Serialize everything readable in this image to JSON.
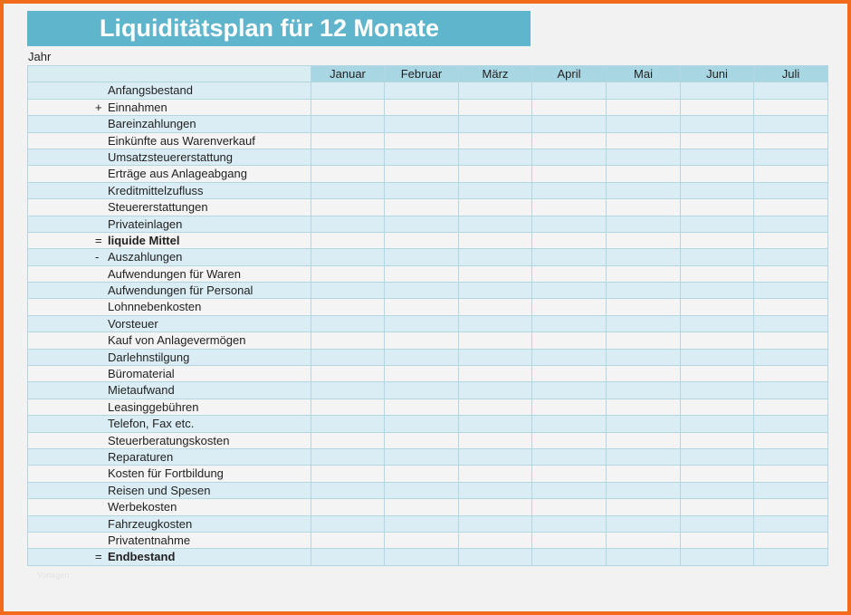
{
  "title": "Liquiditätsplan für 12 Monate",
  "year_label": "Jahr",
  "months": [
    "Januar",
    "Februar",
    "März",
    "April",
    "Mai",
    "Juni",
    "Juli"
  ],
  "rows": [
    {
      "prefix": "",
      "label": "Anfangsbestand",
      "bold": false
    },
    {
      "prefix": "+",
      "label": "Einnahmen",
      "bold": false
    },
    {
      "prefix": "",
      "label": "Bareinzahlungen",
      "bold": false
    },
    {
      "prefix": "",
      "label": "Einkünfte aus Warenverkauf",
      "bold": false
    },
    {
      "prefix": "",
      "label": "Umsatzsteuererstattung",
      "bold": false
    },
    {
      "prefix": "",
      "label": "Erträge aus Anlageabgang",
      "bold": false
    },
    {
      "prefix": "",
      "label": "Kreditmittelzufluss",
      "bold": false
    },
    {
      "prefix": "",
      "label": "Steuererstattungen",
      "bold": false
    },
    {
      "prefix": "",
      "label": "Privateinlagen",
      "bold": false
    },
    {
      "prefix": "=",
      "label": "liquide Mittel",
      "bold": true
    },
    {
      "prefix": "-",
      "label": "Auszahlungen",
      "bold": false
    },
    {
      "prefix": "",
      "label": "Aufwendungen für Waren",
      "bold": false
    },
    {
      "prefix": "",
      "label": "Aufwendungen für Personal",
      "bold": false
    },
    {
      "prefix": "",
      "label": "Lohnnebenkosten",
      "bold": false
    },
    {
      "prefix": "",
      "label": "Vorsteuer",
      "bold": false
    },
    {
      "prefix": "",
      "label": "Kauf von Anlagevermögen",
      "bold": false
    },
    {
      "prefix": "",
      "label": "Darlehnstilgung",
      "bold": false
    },
    {
      "prefix": "",
      "label": "Büromaterial",
      "bold": false
    },
    {
      "prefix": "",
      "label": "Mietaufwand",
      "bold": false
    },
    {
      "prefix": "",
      "label": "Leasinggebühren",
      "bold": false
    },
    {
      "prefix": "",
      "label": "Telefon, Fax etc.",
      "bold": false
    },
    {
      "prefix": "",
      "label": "Steuerberatungskosten",
      "bold": false
    },
    {
      "prefix": "",
      "label": "Reparaturen",
      "bold": false
    },
    {
      "prefix": "",
      "label": "Kosten für Fortbildung",
      "bold": false
    },
    {
      "prefix": "",
      "label": "Reisen und Spesen",
      "bold": false
    },
    {
      "prefix": "",
      "label": "Werbekosten",
      "bold": false
    },
    {
      "prefix": "",
      "label": "Fahrzeugkosten",
      "bold": false
    },
    {
      "prefix": "",
      "label": "Privatentnahme",
      "bold": false
    },
    {
      "prefix": "=",
      "label": "Endbestand",
      "bold": true
    }
  ],
  "watermark": "Vorlagen",
  "colors": {
    "frame_border": "#f26b1d",
    "title_bg": "#5fb6cc",
    "header_bg": "#a9d6e3",
    "row_alt_bg": "#dbedf4"
  }
}
